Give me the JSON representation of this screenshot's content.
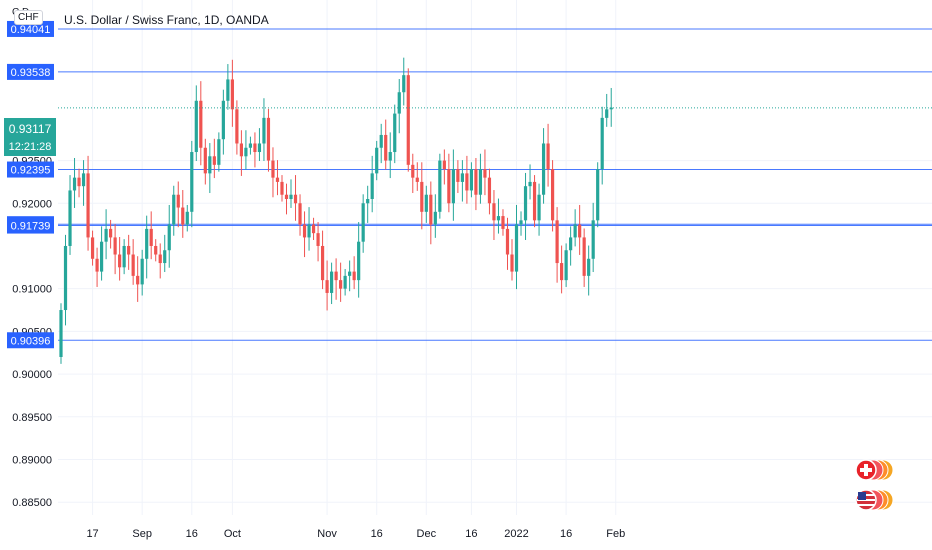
{
  "header": {
    "symbol_badge": "CHF",
    "symbol_ghost": "C        D",
    "title": "U.S. Dollar / Swiss Franc, 1D, OANDA"
  },
  "colors": {
    "up": "#26a69a",
    "down": "#ef5350",
    "level_line": "#2962ff",
    "level_label_bg": "#2962ff",
    "price_label_bg": "#26a69a",
    "grid": "#f0f3fa"
  },
  "price_label": {
    "value": "0.93117",
    "countdown": "12:21:28"
  },
  "icons": [
    "flag-switzerland-icon",
    "flag-usa-icon"
  ],
  "chart_data": {
    "type": "candlestick",
    "title": "U.S. Dollar / Swiss Franc, 1D, OANDA",
    "ylim": [
      0.8835,
      0.9438
    ],
    "y_ticks": [
      {
        "v": 0.925,
        "label": "0.92500"
      },
      {
        "v": 0.92,
        "label": "0.92000"
      },
      {
        "v": 0.91,
        "label": "0.91000"
      },
      {
        "v": 0.905,
        "label": "0.90500"
      },
      {
        "v": 0.9,
        "label": "0.90000"
      },
      {
        "v": 0.895,
        "label": "0.89500"
      },
      {
        "v": 0.89,
        "label": "0.89000"
      },
      {
        "v": 0.885,
        "label": "0.88500"
      }
    ],
    "x_ticks": [
      {
        "i": 7,
        "label": "17"
      },
      {
        "i": 18,
        "label": "Sep"
      },
      {
        "i": 29,
        "label": "16"
      },
      {
        "i": 38,
        "label": "Oct"
      },
      {
        "i": 59,
        "label": "Nov"
      },
      {
        "i": 70,
        "label": "16"
      },
      {
        "i": 81,
        "label": "Dec"
      },
      {
        "i": 91,
        "label": "16"
      },
      {
        "i": 101,
        "label": "2022"
      },
      {
        "i": 112,
        "label": "16"
      },
      {
        "i": 123,
        "label": "Feb"
      }
    ],
    "horizontal_levels": [
      {
        "value": 0.94041,
        "label": "0.94041"
      },
      {
        "value": 0.93538,
        "label": "0.93538"
      },
      {
        "value": 0.92395,
        "label": "0.92395"
      },
      {
        "value": 0.91755,
        "label": "0.91755"
      },
      {
        "value": 0.91739,
        "label": "0.91739"
      },
      {
        "value": 0.90396,
        "label": "0.90396"
      }
    ],
    "last_price": 0.93117,
    "closes": [
      0.9075,
      0.915,
      0.9215,
      0.923,
      0.922,
      0.9235,
      0.916,
      0.9135,
      0.912,
      0.9155,
      0.917,
      0.916,
      0.914,
      0.9125,
      0.915,
      0.914,
      0.9115,
      0.9105,
      0.9135,
      0.917,
      0.915,
      0.914,
      0.913,
      0.9145,
      0.9175,
      0.921,
      0.9195,
      0.9175,
      0.919,
      0.926,
      0.932,
      0.9265,
      0.9235,
      0.9255,
      0.9245,
      0.9275,
      0.932,
      0.9345,
      0.931,
      0.927,
      0.9255,
      0.9265,
      0.927,
      0.926,
      0.927,
      0.93,
      0.925,
      0.923,
      0.9225,
      0.921,
      0.9205,
      0.921,
      0.92,
      0.9175,
      0.916,
      0.9175,
      0.9165,
      0.915,
      0.911,
      0.9095,
      0.912,
      0.911,
      0.91,
      0.9115,
      0.912,
      0.911,
      0.9155,
      0.92,
      0.9205,
      0.9235,
      0.9265,
      0.928,
      0.925,
      0.926,
      0.9305,
      0.933,
      0.935,
      0.9245,
      0.923,
      0.9225,
      0.919,
      0.921,
      0.9175,
      0.919,
      0.925,
      0.924,
      0.92,
      0.924,
      0.9225,
      0.9235,
      0.9215,
      0.924,
      0.921,
      0.924,
      0.923,
      0.92,
      0.918,
      0.9185,
      0.917,
      0.914,
      0.912,
      0.9175,
      0.918,
      0.922,
      0.9225,
      0.918,
      0.921,
      0.927,
      0.924,
      0.918,
      0.913,
      0.911,
      0.9145,
      0.916,
      0.9175,
      0.916,
      0.9115,
      0.9135,
      0.918,
      0.924,
      0.93,
      0.931,
      0.9312
    ]
  }
}
